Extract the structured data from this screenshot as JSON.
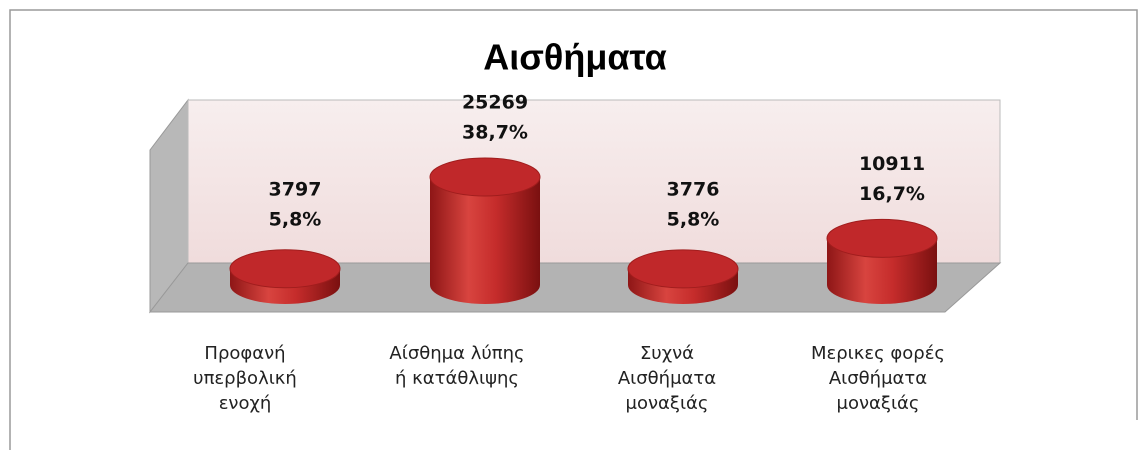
{
  "chart_data": {
    "type": "cylinder-bar",
    "title": "Αισθήματα",
    "categories": [
      "Προφανή\nυπερβολική\nενοχή",
      "Αίσθημα λύπης\nή κατάθλιψης",
      "Συχνά\nΑισθήματα\nμοναξιάς",
      "Μερικες φορές\nΑισθήματα\nμοναξιάς"
    ],
    "values": [
      3797,
      25269,
      3776,
      10911
    ],
    "percent_values": [
      5.8,
      38.7,
      5.8,
      16.7
    ],
    "percent_labels": [
      "5,8%",
      "38,7%",
      "5,8%",
      "16,7%"
    ],
    "color": "#c0282a"
  }
}
